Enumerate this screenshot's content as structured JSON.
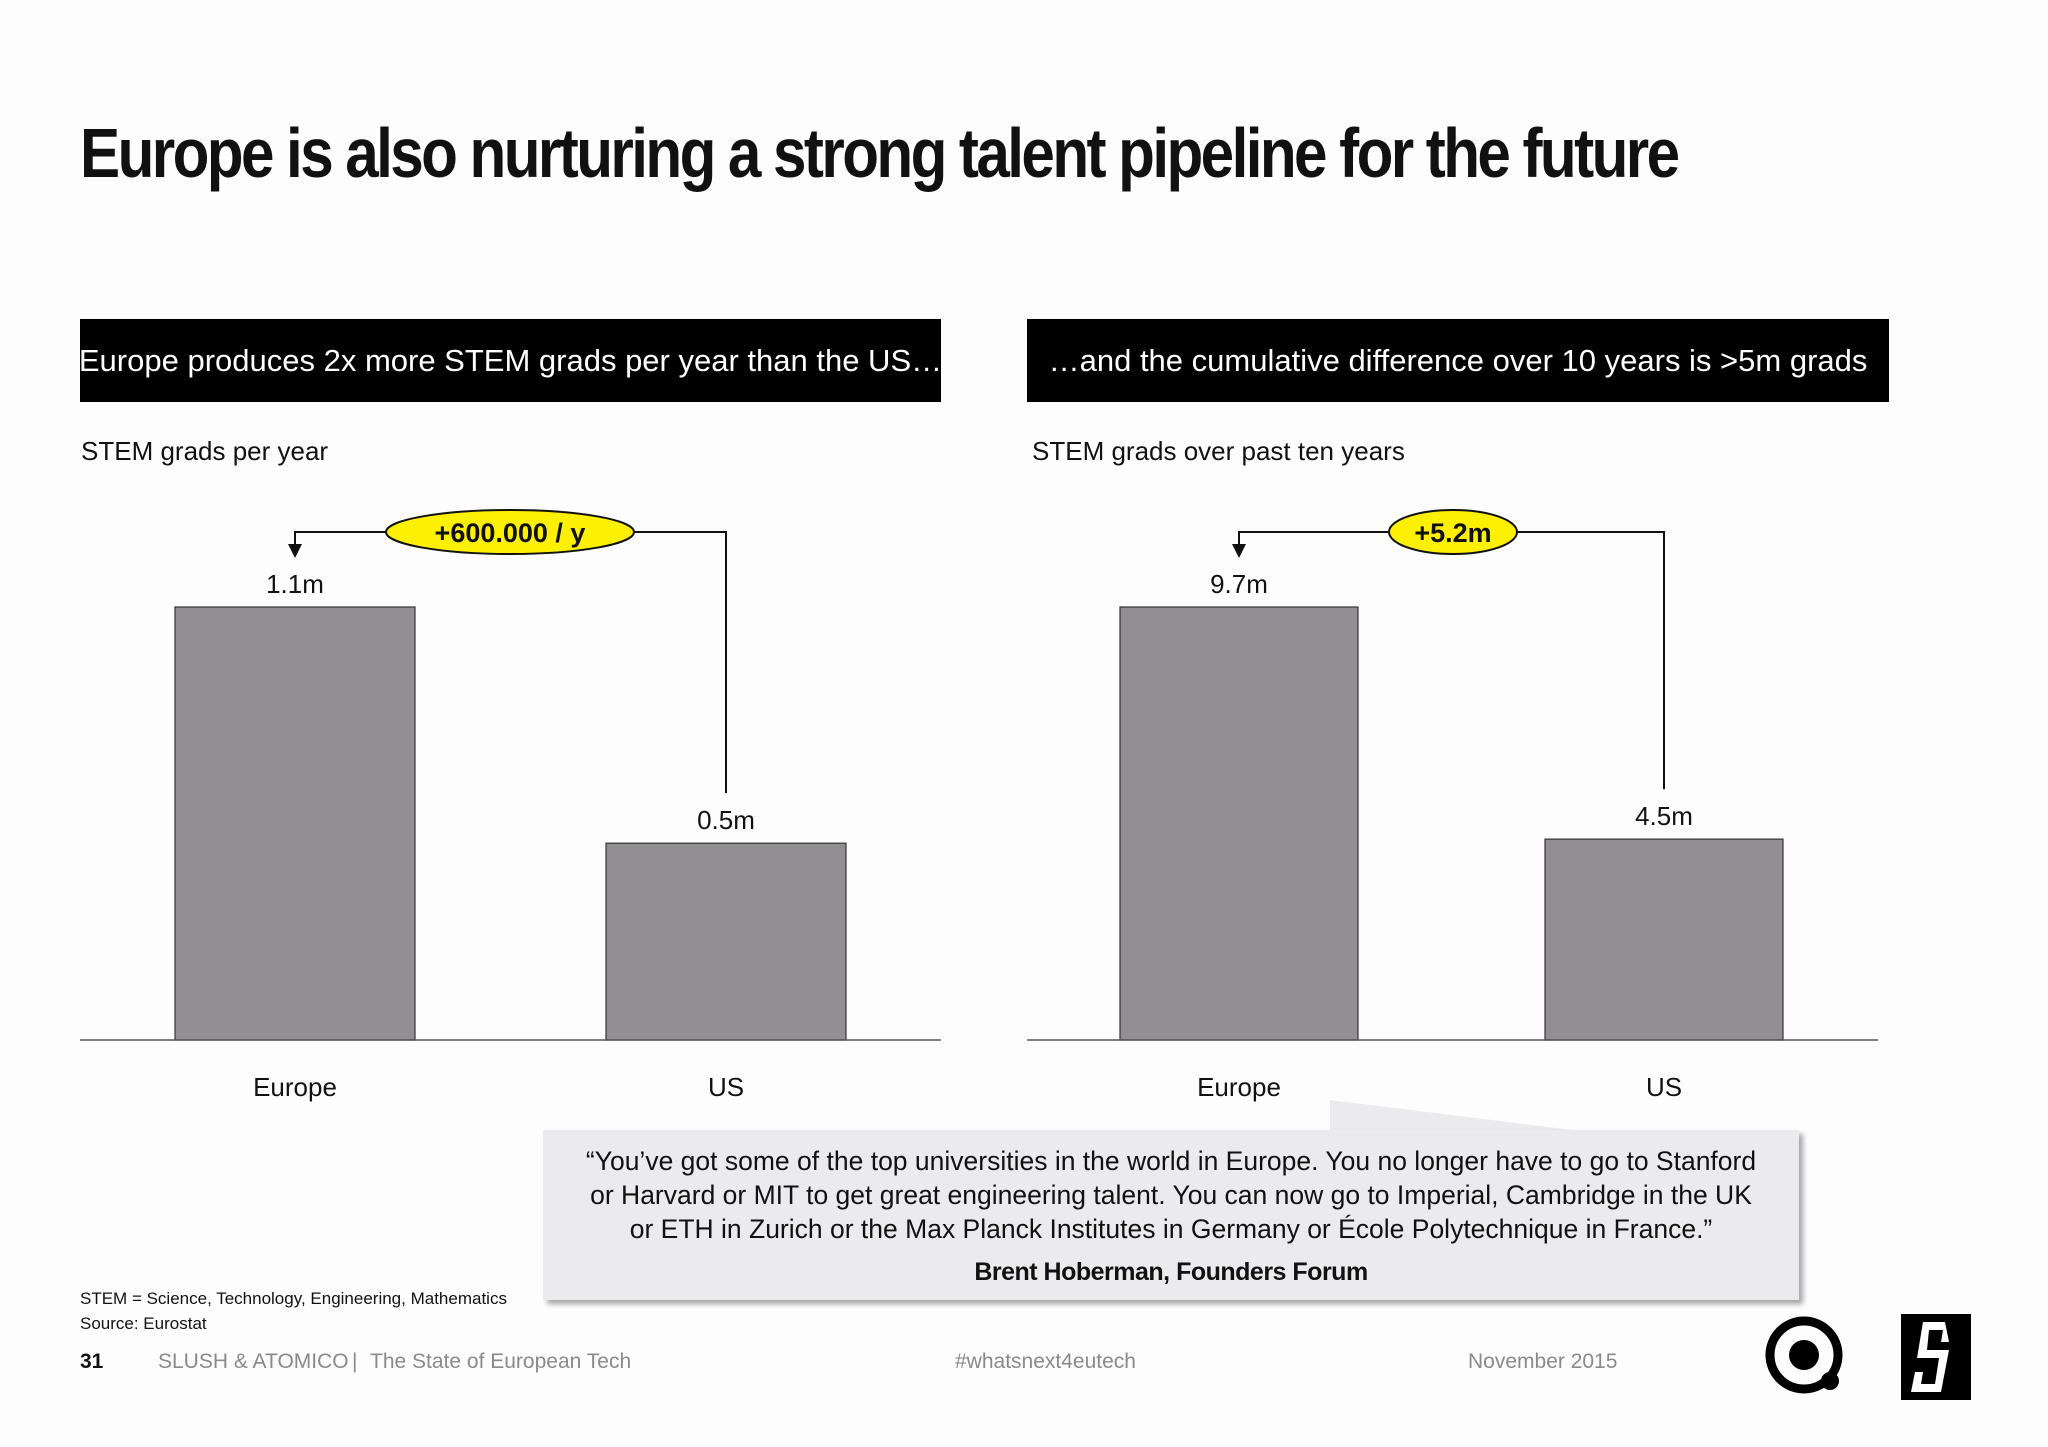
{
  "page": {
    "title": "Europe is also nurturing a strong talent pipeline for the future"
  },
  "left_panel": {
    "banner": "Europe produces 2x more STEM grads per year than the US…",
    "subtitle": "STEM grads per year"
  },
  "right_panel": {
    "banner": "…and the cumulative difference over 10 years is >5m grads",
    "subtitle": "STEM grads over past ten years"
  },
  "chart_data": [
    {
      "type": "bar",
      "categories": [
        "Europe",
        "US"
      ],
      "values": [
        1.1,
        0.5
      ],
      "value_labels": [
        "1.1m",
        "0.5m"
      ],
      "unit": "m",
      "difference_label": "+600.000 / y",
      "bar_color": "#918f92",
      "highlight_color": "#fdf000"
    },
    {
      "type": "bar",
      "categories": [
        "Europe",
        "US"
      ],
      "values": [
        9.7,
        4.5
      ],
      "value_labels": [
        "9.7m",
        "4.5m"
      ],
      "unit": "m",
      "difference_label": "+5.2m",
      "bar_color": "#918f92",
      "highlight_color": "#fdf000"
    }
  ],
  "quote": {
    "lines": [
      "“You’ve got some of the top universities in the world in Europe. You no longer have to go to Stanford",
      "or Harvard or MIT to get great engineering talent. You can now go to Imperial, Cambridge in the UK",
      "or ETH in Zurich or the Max Planck Institutes in Germany or École Polytechnique in France.”"
    ],
    "author": "Brent Hoberman, Founders Forum"
  },
  "footnotes": {
    "definition": "STEM = Science, Technology, Engineering, Mathematics",
    "source": "Source: Eurostat"
  },
  "footer": {
    "page_number": "31",
    "publisher": "SLUSH & ATOMICO",
    "separator": "|",
    "report": "The State of European Tech",
    "hashtag": "#whatsnext4eutech",
    "date": "November 2015"
  },
  "logos": {
    "left": "atomico-circle-logo",
    "right": "slush-logo"
  }
}
